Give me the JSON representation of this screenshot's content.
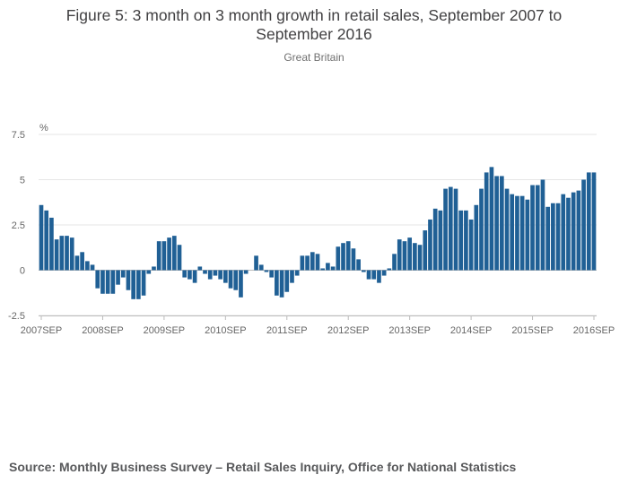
{
  "header": {
    "title_line1": "Figure 5: 3 month on 3 month growth in retail sales, September 2007 to",
    "title_line2": "September 2016",
    "subtitle": "Great Britain"
  },
  "footer": {
    "source": "Source: Monthly Business Survey – Retail Sales Inquiry, Office for National Statistics"
  },
  "colors": {
    "bar": "#206095",
    "grid": "#e6e6e6",
    "axis": "#bbbbbb",
    "text": "#414042"
  },
  "chart_data": {
    "type": "bar",
    "title": "Figure 5: 3 month on 3 month growth in retail sales, September 2007 to September 2016",
    "subtitle": "Great Britain",
    "xlabel": "",
    "ylabel": "%",
    "ylim": [
      -2.5,
      7.5
    ],
    "yticks": [
      "7.5",
      "5",
      "2.5",
      "0",
      "-2.5"
    ],
    "ytick_values": [
      7.5,
      5,
      2.5,
      0,
      -2.5
    ],
    "xticks": [
      "2007SEP",
      "2008SEP",
      "2009SEP",
      "2010SEP",
      "2011SEP",
      "2012SEP",
      "2013SEP",
      "2014SEP",
      "2015SEP",
      "2016SEP"
    ],
    "grid": true,
    "series": [
      {
        "name": "3 month on 3 month growth",
        "values": [
          3.6,
          3.3,
          2.9,
          1.7,
          1.9,
          1.9,
          1.8,
          0.8,
          1.0,
          0.5,
          0.3,
          -1.0,
          -1.3,
          -1.3,
          -1.3,
          -0.8,
          -0.4,
          -1.1,
          -1.6,
          -1.6,
          -1.4,
          -0.2,
          0.2,
          1.6,
          1.6,
          1.8,
          1.9,
          1.4,
          -0.4,
          -0.5,
          -0.7,
          0.2,
          -0.2,
          -0.5,
          -0.3,
          -0.5,
          -0.7,
          -1.0,
          -1.1,
          -1.5,
          -0.2,
          0.0,
          0.8,
          0.3,
          -0.1,
          -0.4,
          -1.4,
          -1.5,
          -1.2,
          -0.7,
          -0.3,
          0.8,
          0.8,
          1.0,
          0.9,
          0.1,
          0.4,
          0.2,
          1.3,
          1.5,
          1.6,
          1.2,
          0.6,
          -0.1,
          -0.5,
          -0.5,
          -0.7,
          -0.3,
          0.1,
          0.9,
          1.7,
          1.6,
          1.8,
          1.5,
          1.4,
          2.2,
          2.8,
          3.4,
          3.3,
          4.5,
          4.6,
          4.5,
          3.3,
          3.3,
          2.8,
          3.6,
          4.5,
          5.4,
          5.7,
          5.2,
          5.2,
          4.5,
          4.2,
          4.1,
          4.1,
          3.9,
          4.7,
          4.7,
          5.0,
          3.5,
          3.7,
          3.7,
          4.2,
          4.0,
          4.3,
          4.4,
          5.0,
          5.4,
          5.4
        ]
      }
    ]
  }
}
